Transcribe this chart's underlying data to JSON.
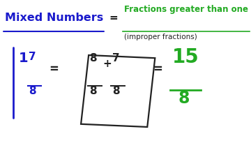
{
  "bg_color": "#ffffff",
  "blue_color": "#1a1acc",
  "green_color": "#22aa22",
  "black_color": "#222222",
  "title_text": "Mixed Numbers",
  "header_eq": "=",
  "header_right_top": "Fractions greater than one",
  "header_right_bot": "(improper fractions)",
  "mixed_whole": "1",
  "mixed_num": "7",
  "mixed_den": "8",
  "box_frac1_num": "8",
  "box_frac1_den": "8",
  "box_plus": "+",
  "box_frac2_num": "7",
  "box_frac2_den": "8",
  "result_num": "15",
  "result_den": "8",
  "fig_w": 3.6,
  "fig_h": 2.25,
  "dpi": 100
}
